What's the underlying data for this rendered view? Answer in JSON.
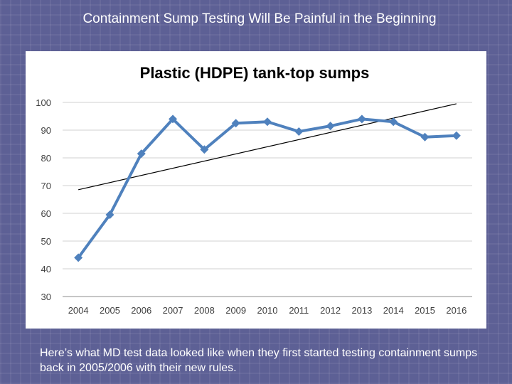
{
  "slide": {
    "title": "Containment Sump Testing Will Be Painful in the Beginning",
    "caption": "Here’s what MD test data looked like when they first started testing containment sumps back in 2005/2006 with their new rules."
  },
  "chart_data": {
    "type": "line",
    "title": "Plastic (HDPE) tank-top sumps",
    "xlabel": "",
    "ylabel": "",
    "categories": [
      "2004",
      "2005",
      "2006",
      "2007",
      "2008",
      "2009",
      "2010",
      "2011",
      "2012",
      "2013",
      "2014",
      "2015",
      "2016"
    ],
    "series": [
      {
        "values": [
          44,
          59.5,
          81.5,
          94,
          83,
          92.5,
          93,
          89.5,
          91.5,
          94,
          93,
          87.5,
          88
        ],
        "color": "#4f81bd",
        "marker": "diamond"
      }
    ],
    "trendline": {
      "type": "linear",
      "color": "#000000",
      "start": 68.5,
      "end": 99.5
    },
    "ylim": [
      30,
      100
    ],
    "yticks": [
      30,
      40,
      50,
      60,
      70,
      80,
      90,
      100
    ],
    "grid": true,
    "legend": "none"
  }
}
